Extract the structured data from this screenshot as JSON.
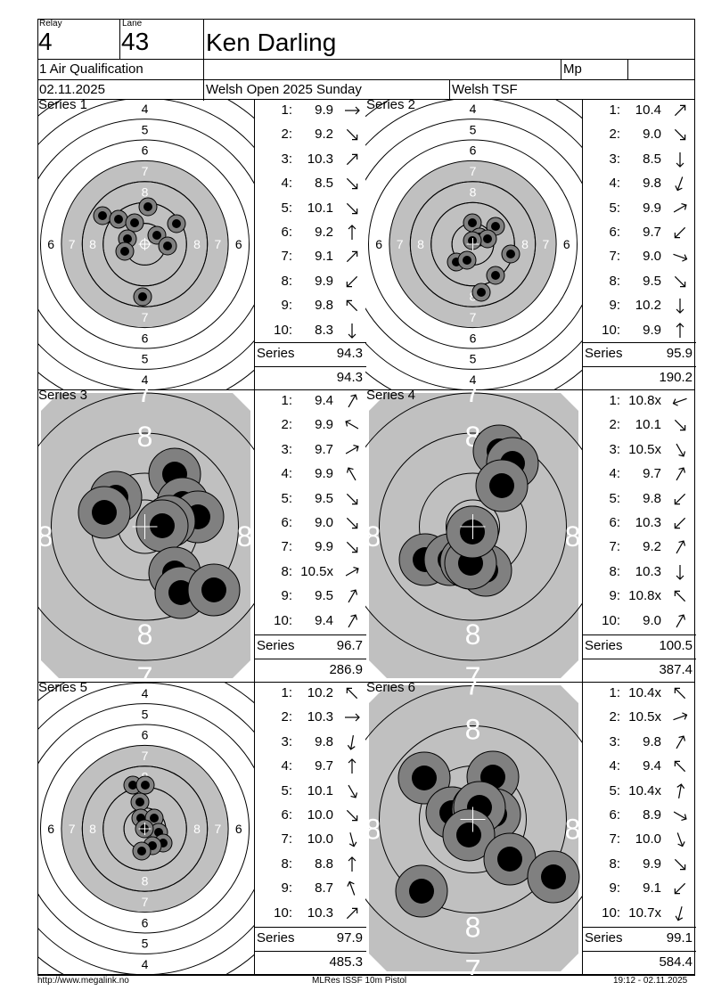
{
  "header": {
    "relay_label": "Relay",
    "relay_value": "4",
    "lane_label": "Lane",
    "lane_value": "43",
    "name": "Ken Darling",
    "event": "1 Air Qualification",
    "class_code": "Mp",
    "date": "02.11.2025",
    "competition": "Welsh Open 2025 Sunday",
    "club": "Welsh TSF"
  },
  "series_word": "Series",
  "series": [
    {
      "title": "Series 1",
      "zoom": "wide",
      "shots": [
        {
          "no": "1:",
          "val": "9.9",
          "dir": 90
        },
        {
          "no": "2:",
          "val": "9.2",
          "dir": 135
        },
        {
          "no": "3:",
          "val": "10.3",
          "dir": 45
        },
        {
          "no": "4:",
          "val": "8.5",
          "dir": 135
        },
        {
          "no": "5:",
          "val": "10.1",
          "dir": 135
        },
        {
          "no": "6:",
          "val": "9.2",
          "dir": 0
        },
        {
          "no": "7:",
          "val": "9.1",
          "dir": 45
        },
        {
          "no": "8:",
          "val": "9.9",
          "dir": 225
        },
        {
          "no": "9:",
          "val": "9.8",
          "dir": 315
        },
        {
          "no": "10:",
          "val": "8.3",
          "dir": 180
        }
      ],
      "series_total": "94.3",
      "running_total": "94.3"
    },
    {
      "title": "Series 2",
      "zoom": "wide",
      "shots": [
        {
          "no": "1:",
          "val": "10.4",
          "dir": 45
        },
        {
          "no": "2:",
          "val": "9.0",
          "dir": 135
        },
        {
          "no": "3:",
          "val": "8.5",
          "dir": 180
        },
        {
          "no": "4:",
          "val": "9.8",
          "dir": 200
        },
        {
          "no": "5:",
          "val": "9.9",
          "dir": 60
        },
        {
          "no": "6:",
          "val": "9.7",
          "dir": 225
        },
        {
          "no": "7:",
          "val": "9.0",
          "dir": 110
        },
        {
          "no": "8:",
          "val": "9.5",
          "dir": 135
        },
        {
          "no": "9:",
          "val": "10.2",
          "dir": 180
        },
        {
          "no": "10:",
          "val": "9.9",
          "dir": 0
        }
      ],
      "series_total": "95.9",
      "running_total": "190.2"
    },
    {
      "title": "Series 3",
      "zoom": "close",
      "shots": [
        {
          "no": "1:",
          "val": "9.4",
          "dir": 30
        },
        {
          "no": "2:",
          "val": "9.9",
          "dir": 300
        },
        {
          "no": "3:",
          "val": "9.7",
          "dir": 60
        },
        {
          "no": "4:",
          "val": "9.9",
          "dir": 330
        },
        {
          "no": "5:",
          "val": "9.5",
          "dir": 135
        },
        {
          "no": "6:",
          "val": "9.0",
          "dir": 135
        },
        {
          "no": "7:",
          "val": "9.9",
          "dir": 135
        },
        {
          "no": "8:",
          "val": "10.5x",
          "dir": 60
        },
        {
          "no": "9:",
          "val": "9.5",
          "dir": 30
        },
        {
          "no": "10:",
          "val": "9.4",
          "dir": 30
        }
      ],
      "series_total": "96.7",
      "running_total": "286.9"
    },
    {
      "title": "Series 4",
      "zoom": "close",
      "shots": [
        {
          "no": "1:",
          "val": "10.8x",
          "dir": 250
        },
        {
          "no": "2:",
          "val": "10.1",
          "dir": 135
        },
        {
          "no": "3:",
          "val": "10.5x",
          "dir": 150
        },
        {
          "no": "4:",
          "val": "9.7",
          "dir": 30
        },
        {
          "no": "5:",
          "val": "9.8",
          "dir": 225
        },
        {
          "no": "6:",
          "val": "10.3",
          "dir": 225
        },
        {
          "no": "7:",
          "val": "9.2",
          "dir": 30
        },
        {
          "no": "8:",
          "val": "10.3",
          "dir": 180
        },
        {
          "no": "9:",
          "val": "10.8x",
          "dir": 315
        },
        {
          "no": "10:",
          "val": "9.0",
          "dir": 30
        }
      ],
      "series_total": "100.5",
      "running_total": "387.4"
    },
    {
      "title": "Series 5",
      "zoom": "wide",
      "shots": [
        {
          "no": "1:",
          "val": "10.2",
          "dir": 315
        },
        {
          "no": "2:",
          "val": "10.3",
          "dir": 90
        },
        {
          "no": "3:",
          "val": "9.8",
          "dir": 190
        },
        {
          "no": "4:",
          "val": "9.7",
          "dir": 0
        },
        {
          "no": "5:",
          "val": "10.1",
          "dir": 150
        },
        {
          "no": "6:",
          "val": "10.0",
          "dir": 135
        },
        {
          "no": "7:",
          "val": "10.0",
          "dir": 165
        },
        {
          "no": "8:",
          "val": "8.8",
          "dir": 0
        },
        {
          "no": "9:",
          "val": "8.7",
          "dir": 340
        },
        {
          "no": "10:",
          "val": "10.3",
          "dir": 45
        }
      ],
      "series_total": "97.9",
      "running_total": "485.3"
    },
    {
      "title": "Series 6",
      "zoom": "close",
      "shots": [
        {
          "no": "1:",
          "val": "10.4x",
          "dir": 315
        },
        {
          "no": "2:",
          "val": "10.5x",
          "dir": 70
        },
        {
          "no": "3:",
          "val": "9.8",
          "dir": 30
        },
        {
          "no": "4:",
          "val": "9.4",
          "dir": 315
        },
        {
          "no": "5:",
          "val": "10.4x",
          "dir": 10
        },
        {
          "no": "6:",
          "val": "8.9",
          "dir": 120
        },
        {
          "no": "7:",
          "val": "10.0",
          "dir": 160
        },
        {
          "no": "8:",
          "val": "9.9",
          "dir": 135
        },
        {
          "no": "9:",
          "val": "9.1",
          "dir": 225
        },
        {
          "no": "10:",
          "val": "10.7x",
          "dir": 195
        }
      ],
      "series_total": "99.1",
      "running_total": "584.4"
    }
  ],
  "footer": {
    "left": "http://www.megalink.no",
    "center": "MLRes ISSF 10m Pistol",
    "right": "19:12 - 02.11.2025"
  },
  "colors": {
    "ring_gray": "#c0c0c0",
    "hole_gray": "#808080",
    "hole_black": "#000000"
  }
}
